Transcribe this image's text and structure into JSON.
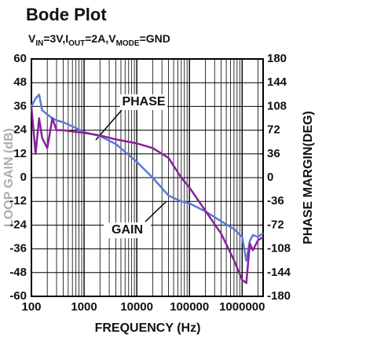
{
  "chart_data": {
    "type": "line",
    "title": "Bode Plot",
    "subtitle": [
      "V",
      "IN",
      "=3V,I",
      "OUT",
      "=2A,V",
      "MODE",
      "=GND"
    ],
    "x_label": "FREQUENCY (Hz)",
    "y_label": "LOOP GAIN (dB)",
    "y2_label": "PHASE MARGIN(DEG)",
    "annotations": [
      "PHASE",
      "GAIN"
    ],
    "x": [
      100,
      120,
      140,
      160,
      200,
      250,
      300,
      400,
      600,
      1000,
      2000,
      4000,
      10000,
      20000,
      40000,
      70000,
      100000,
      200000,
      400000,
      700000,
      1000000,
      1200000,
      1400000,
      1600000,
      2000000,
      2500000
    ],
    "series": [
      {
        "name": "GAIN",
        "color": "#5b78dc",
        "axis": "y",
        "values": [
          36,
          40,
          42,
          34,
          32,
          30,
          29,
          28,
          26,
          23,
          21,
          17,
          8,
          0,
          -9,
          -12,
          -13,
          -17,
          -22,
          -26,
          -30,
          -42,
          -32,
          -29,
          -30,
          -28
        ]
      },
      {
        "name": "PHASE",
        "color": "#8a1f9e",
        "axis": "y2",
        "values": [
          108,
          36,
          90,
          60,
          45,
          90,
          72,
          72,
          70,
          68,
          64,
          58,
          52,
          45,
          30,
          0,
          -15,
          -50,
          -85,
          -125,
          -155,
          -160,
          -100,
          -110,
          -95,
          -90
        ]
      }
    ],
    "xscale": "log",
    "xlim": [
      100,
      2500000
    ],
    "xticks": [
      100,
      1000,
      10000,
      100000,
      1000000
    ],
    "ylim": [
      -60,
      60
    ],
    "yticks": [
      -60,
      -48,
      -36,
      -24,
      -12,
      0,
      12,
      24,
      36,
      48,
      60
    ],
    "y2lim": [
      -180,
      180
    ],
    "y2ticks": [
      -180,
      -144,
      -108,
      -72,
      -36,
      0,
      36,
      72,
      108,
      144,
      180
    ],
    "grid": true
  }
}
